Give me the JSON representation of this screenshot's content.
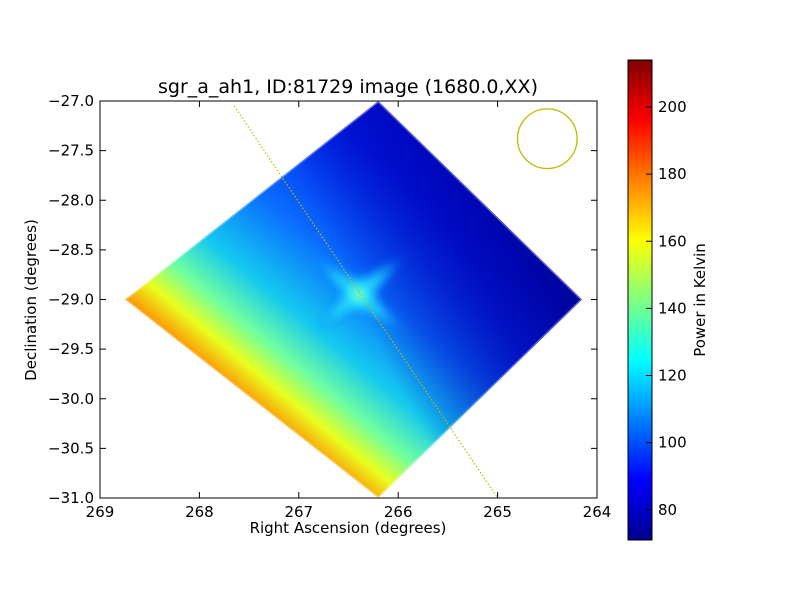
{
  "chart_data": {
    "type": "heatmap",
    "title": "sgr_a_ah1, ID:81729 image (1680.0,XX)",
    "xlabel": "Right Ascension (degrees)",
    "ylabel": "Declination (degrees)",
    "xlim": [
      269,
      264
    ],
    "ylim": [
      -31.0,
      -27.0
    ],
    "xticks": [
      269,
      268,
      267,
      266,
      265,
      264
    ],
    "xtick_labels": [
      "269",
      "268",
      "267",
      "266",
      "265",
      "264"
    ],
    "yticks": [
      -27.0,
      -27.5,
      -28.0,
      -28.5,
      -29.0,
      -29.5,
      -30.0,
      -30.5,
      -31.0
    ],
    "ytick_labels": [
      "−27.0",
      "−27.5",
      "−28.0",
      "−28.5",
      "−29.0",
      "−29.5",
      "−30.0",
      "−30.5",
      "−31.0"
    ],
    "colormap": "jet",
    "colorbar": {
      "label": "Power in Kelvin",
      "range": [
        71,
        214
      ],
      "ticks": [
        80,
        100,
        120,
        140,
        160,
        180,
        200
      ],
      "tick_labels": [
        "80",
        "100",
        "120",
        "140",
        "160",
        "180",
        "200"
      ]
    },
    "footprint_corners": [
      {
        "ra": 266.2,
        "dec": -27.0
      },
      {
        "ra": 264.15,
        "dec": -29.0
      },
      {
        "ra": 266.2,
        "dec": -31.0
      },
      {
        "ra": 268.75,
        "dec": -29.0
      }
    ],
    "hotspot_center": {
      "ra": 266.4,
      "dec": -28.95
    },
    "galactic_plane": [
      {
        "ra": 267.65,
        "dec": -27.05
      },
      {
        "ra": 265.0,
        "dec": -31.0
      }
    ],
    "beam_circle": {
      "ra": 264.5,
      "dec": -27.38,
      "radius_deg": 0.3
    },
    "overlay_color": "#bbbb00"
  }
}
